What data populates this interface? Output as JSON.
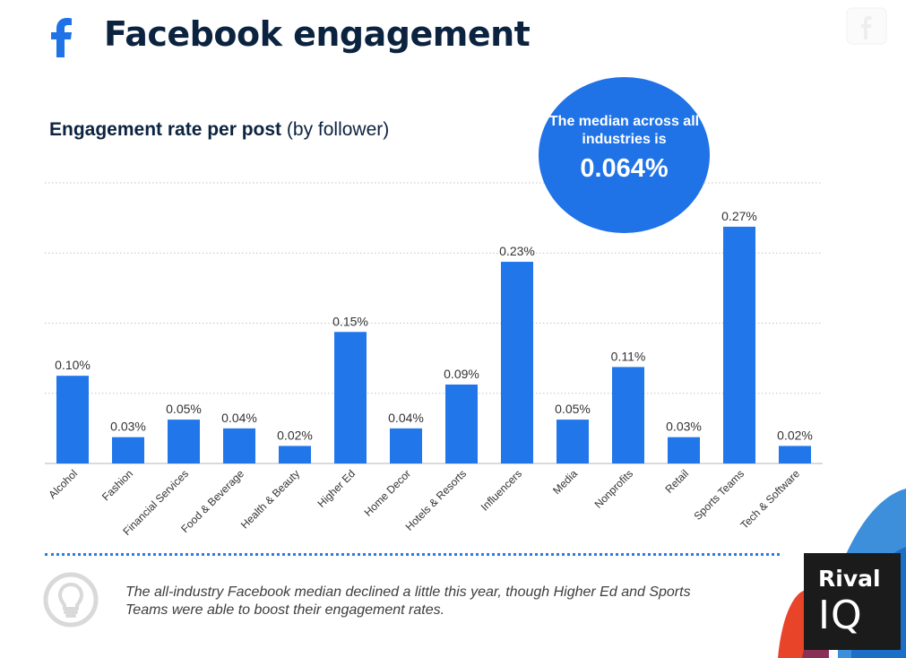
{
  "header": {
    "title": "Facebook engagement",
    "logo_icon": "facebook-f-icon",
    "corner_icon": "facebook-watermark-icon"
  },
  "subtitle": {
    "bold": "Engagement rate per post",
    "rest": "(by follower)"
  },
  "median": {
    "text": "The median across all industries is",
    "value": "0.064%"
  },
  "chart_data": {
    "type": "bar",
    "title": "",
    "xlabel": "",
    "ylabel": "",
    "ylim": [
      0,
      0.32
    ],
    "grid": true,
    "legend": "none",
    "bar_color": "#2176ea",
    "categories": [
      "Alcohol",
      "Fashion",
      "Financial Services",
      "Food & Beverage",
      "Health & Beauty",
      "Higher Ed",
      "Home Decor",
      "Hotels & Resorts",
      "Influencers",
      "Media",
      "Nonprofits",
      "Retail",
      "Sports Teams",
      "Tech & Software"
    ],
    "values": [
      0.1,
      0.03,
      0.05,
      0.04,
      0.02,
      0.15,
      0.04,
      0.09,
      0.23,
      0.05,
      0.11,
      0.03,
      0.27,
      0.02
    ],
    "value_labels": [
      "0.10%",
      "0.03%",
      "0.05%",
      "0.04%",
      "0.02%",
      "0.15%",
      "0.04%",
      "0.09%",
      "0.23%",
      "0.05%",
      "0.11%",
      "0.03%",
      "0.27%",
      "0.02%"
    ]
  },
  "footer": {
    "note": "The all-industry Facebook median declined a little this year, though Higher Ed and Sports Teams were able to boost their engagement rates.",
    "icon": "lightbulb-icon"
  },
  "brand": {
    "line1": "Rival",
    "line2": "IQ"
  },
  "colors": {
    "accent": "#1f73e7",
    "title": "#0c2340"
  }
}
